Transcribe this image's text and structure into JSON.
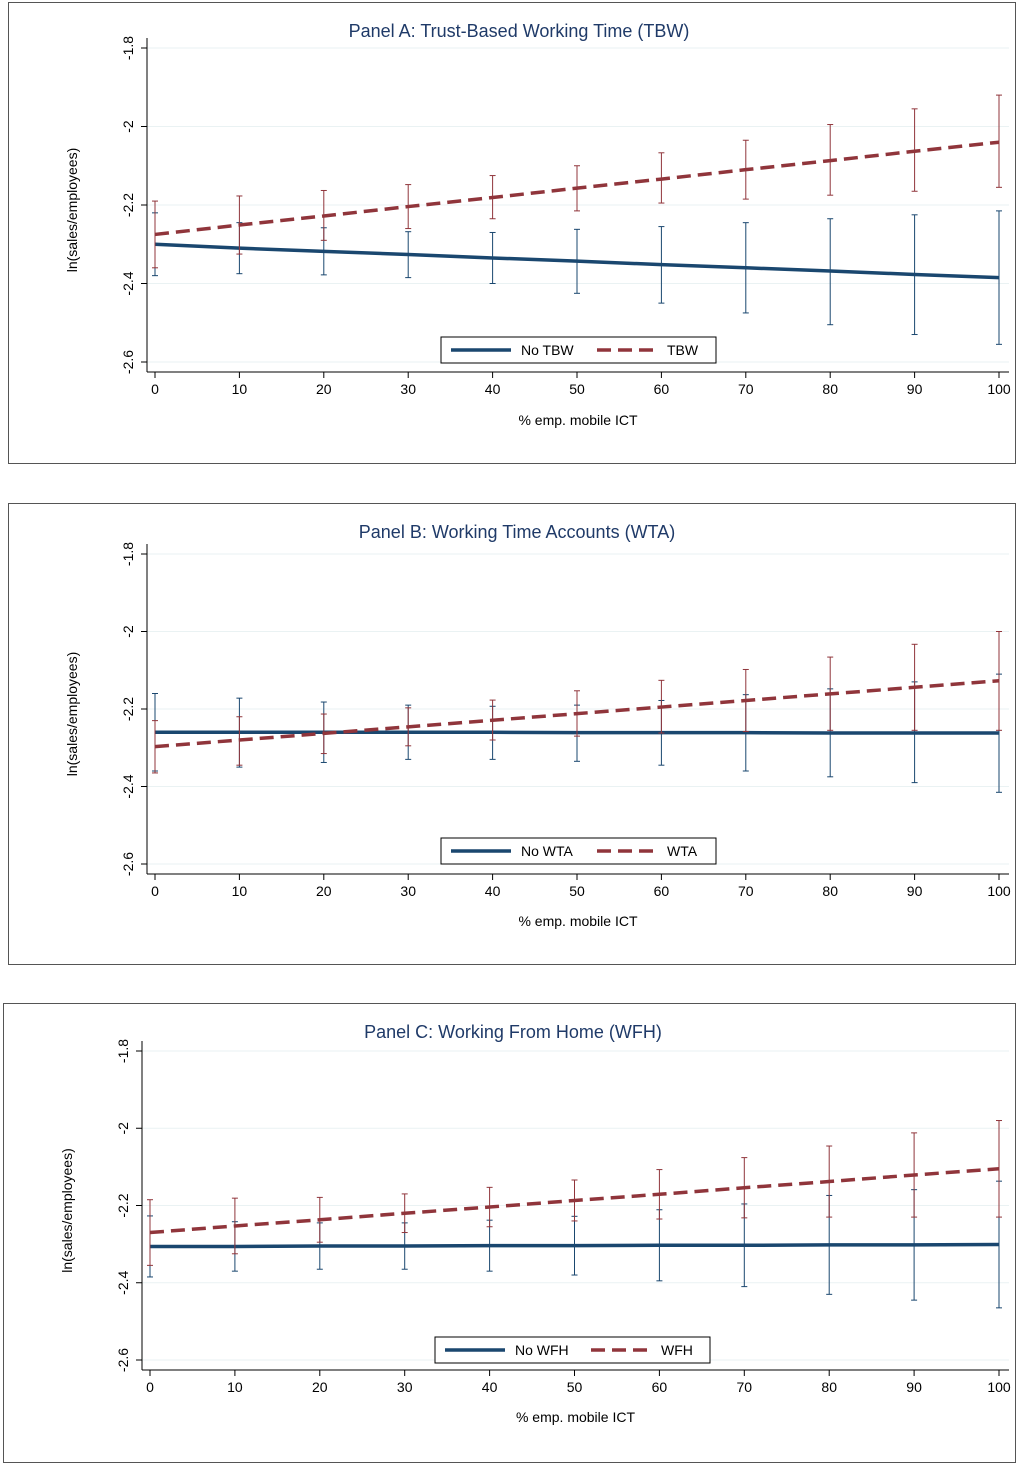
{
  "colors": {
    "no_series": "#1a476f",
    "with_series": "#90353b",
    "grid": "#eaf2f3",
    "title": "#1f3a68"
  },
  "chart_data": [
    {
      "type": "line",
      "title": "Panel A: Trust-Based Working Time (TBW)",
      "xlabel": "% emp. mobile ICT",
      "ylabel": "ln(sales/employees)",
      "xlim": [
        0,
        100
      ],
      "ylim": [
        -2.6,
        -1.8
      ],
      "xticks": [
        "0",
        "10",
        "20",
        "30",
        "40",
        "50",
        "60",
        "70",
        "80",
        "90",
        "100"
      ],
      "yticks": [
        "-2.6",
        "-2.4",
        "-2.2",
        "-2",
        "-1.8"
      ],
      "grid": true,
      "legend": "bottom-center",
      "x": [
        0,
        10,
        20,
        30,
        40,
        50,
        60,
        70,
        80,
        90,
        100
      ],
      "series": [
        {
          "name": "No TBW",
          "style": "solid",
          "color": "#1a476f",
          "values": [
            -2.3,
            -2.31,
            -2.318,
            -2.326,
            -2.335,
            -2.343,
            -2.352,
            -2.36,
            -2.368,
            -2.377,
            -2.385
          ],
          "lower": [
            -2.38,
            -2.375,
            -2.378,
            -2.385,
            -2.4,
            -2.425,
            -2.45,
            -2.475,
            -2.505,
            -2.53,
            -2.555
          ],
          "upper": [
            -2.22,
            -2.245,
            -2.258,
            -2.268,
            -2.27,
            -2.262,
            -2.255,
            -2.245,
            -2.235,
            -2.225,
            -2.215
          ]
        },
        {
          "name": "TBW",
          "style": "dashed",
          "color": "#90353b",
          "values": [
            -2.275,
            -2.251,
            -2.228,
            -2.204,
            -2.181,
            -2.157,
            -2.134,
            -2.11,
            -2.087,
            -2.063,
            -2.04
          ],
          "lower": [
            -2.36,
            -2.325,
            -2.29,
            -2.26,
            -2.235,
            -2.215,
            -2.195,
            -2.185,
            -2.175,
            -2.165,
            -2.155
          ],
          "upper": [
            -2.19,
            -2.177,
            -2.163,
            -2.148,
            -2.125,
            -2.1,
            -2.067,
            -2.035,
            -1.995,
            -1.955,
            -1.92
          ]
        }
      ]
    },
    {
      "type": "line",
      "title": "Panel B: Working Time Accounts (WTA)",
      "xlabel": "% emp. mobile ICT",
      "ylabel": "ln(sales/employees)",
      "xlim": [
        0,
        100
      ],
      "ylim": [
        -2.6,
        -1.8
      ],
      "xticks": [
        "0",
        "10",
        "20",
        "30",
        "40",
        "50",
        "60",
        "70",
        "80",
        "90",
        "100"
      ],
      "yticks": [
        "-2.6",
        "-2.4",
        "-2.2",
        "-2",
        "-1.8"
      ],
      "grid": true,
      "legend": "bottom-center",
      "x": [
        0,
        10,
        20,
        30,
        40,
        50,
        60,
        70,
        80,
        90,
        100
      ],
      "series": [
        {
          "name": "No WTA",
          "style": "solid",
          "color": "#1a476f",
          "values": [
            -2.26,
            -2.26,
            -2.26,
            -2.26,
            -2.26,
            -2.261,
            -2.261,
            -2.261,
            -2.262,
            -2.262,
            -2.262
          ],
          "lower": [
            -2.36,
            -2.35,
            -2.338,
            -2.33,
            -2.33,
            -2.335,
            -2.345,
            -2.36,
            -2.375,
            -2.39,
            -2.415
          ],
          "upper": [
            -2.16,
            -2.172,
            -2.182,
            -2.19,
            -2.193,
            -2.19,
            -2.178,
            -2.163,
            -2.148,
            -2.13,
            -2.11
          ]
        },
        {
          "name": "WTA",
          "style": "dashed",
          "color": "#90353b",
          "values": [
            -2.297,
            -2.28,
            -2.263,
            -2.246,
            -2.229,
            -2.212,
            -2.195,
            -2.178,
            -2.161,
            -2.144,
            -2.127
          ],
          "lower": [
            -2.365,
            -2.345,
            -2.315,
            -2.295,
            -2.28,
            -2.27,
            -2.262,
            -2.258,
            -2.255,
            -2.255,
            -2.255
          ],
          "upper": [
            -2.23,
            -2.22,
            -2.213,
            -2.197,
            -2.177,
            -2.153,
            -2.126,
            -2.098,
            -2.066,
            -2.033,
            -2.0
          ]
        }
      ]
    },
    {
      "type": "line",
      "title": "Panel C: Working From Home (WFH)",
      "xlabel": "% emp. mobile ICT",
      "ylabel": "ln(sales/employees)",
      "xlim": [
        0,
        100
      ],
      "ylim": [
        -2.6,
        -1.8
      ],
      "xticks": [
        "0",
        "10",
        "20",
        "30",
        "40",
        "50",
        "60",
        "70",
        "80",
        "90",
        "100"
      ],
      "yticks": [
        "-2.6",
        "-2.4",
        "-2.2",
        "-2",
        "-1.8"
      ],
      "grid": true,
      "legend": "bottom-center",
      "x": [
        0,
        10,
        20,
        30,
        40,
        50,
        60,
        70,
        80,
        90,
        100
      ],
      "series": [
        {
          "name": "No WFH",
          "style": "solid",
          "color": "#1a476f",
          "values": [
            -2.306,
            -2.306,
            -2.305,
            -2.305,
            -2.304,
            -2.304,
            -2.303,
            -2.303,
            -2.302,
            -2.302,
            -2.301
          ],
          "lower": [
            -2.385,
            -2.37,
            -2.365,
            -2.365,
            -2.37,
            -2.38,
            -2.395,
            -2.41,
            -2.43,
            -2.445,
            -2.465
          ],
          "upper": [
            -2.227,
            -2.242,
            -2.245,
            -2.245,
            -2.238,
            -2.228,
            -2.211,
            -2.196,
            -2.174,
            -2.159,
            -2.137
          ]
        },
        {
          "name": "WFH",
          "style": "dashed",
          "color": "#90353b",
          "values": [
            -2.27,
            -2.253,
            -2.237,
            -2.22,
            -2.204,
            -2.187,
            -2.171,
            -2.154,
            -2.138,
            -2.121,
            -2.105
          ],
          "lower": [
            -2.355,
            -2.325,
            -2.295,
            -2.27,
            -2.255,
            -2.24,
            -2.235,
            -2.232,
            -2.23,
            -2.23,
            -2.23
          ],
          "upper": [
            -2.185,
            -2.181,
            -2.179,
            -2.17,
            -2.153,
            -2.134,
            -2.107,
            -2.076,
            -2.046,
            -2.012,
            -1.98
          ]
        }
      ]
    }
  ]
}
